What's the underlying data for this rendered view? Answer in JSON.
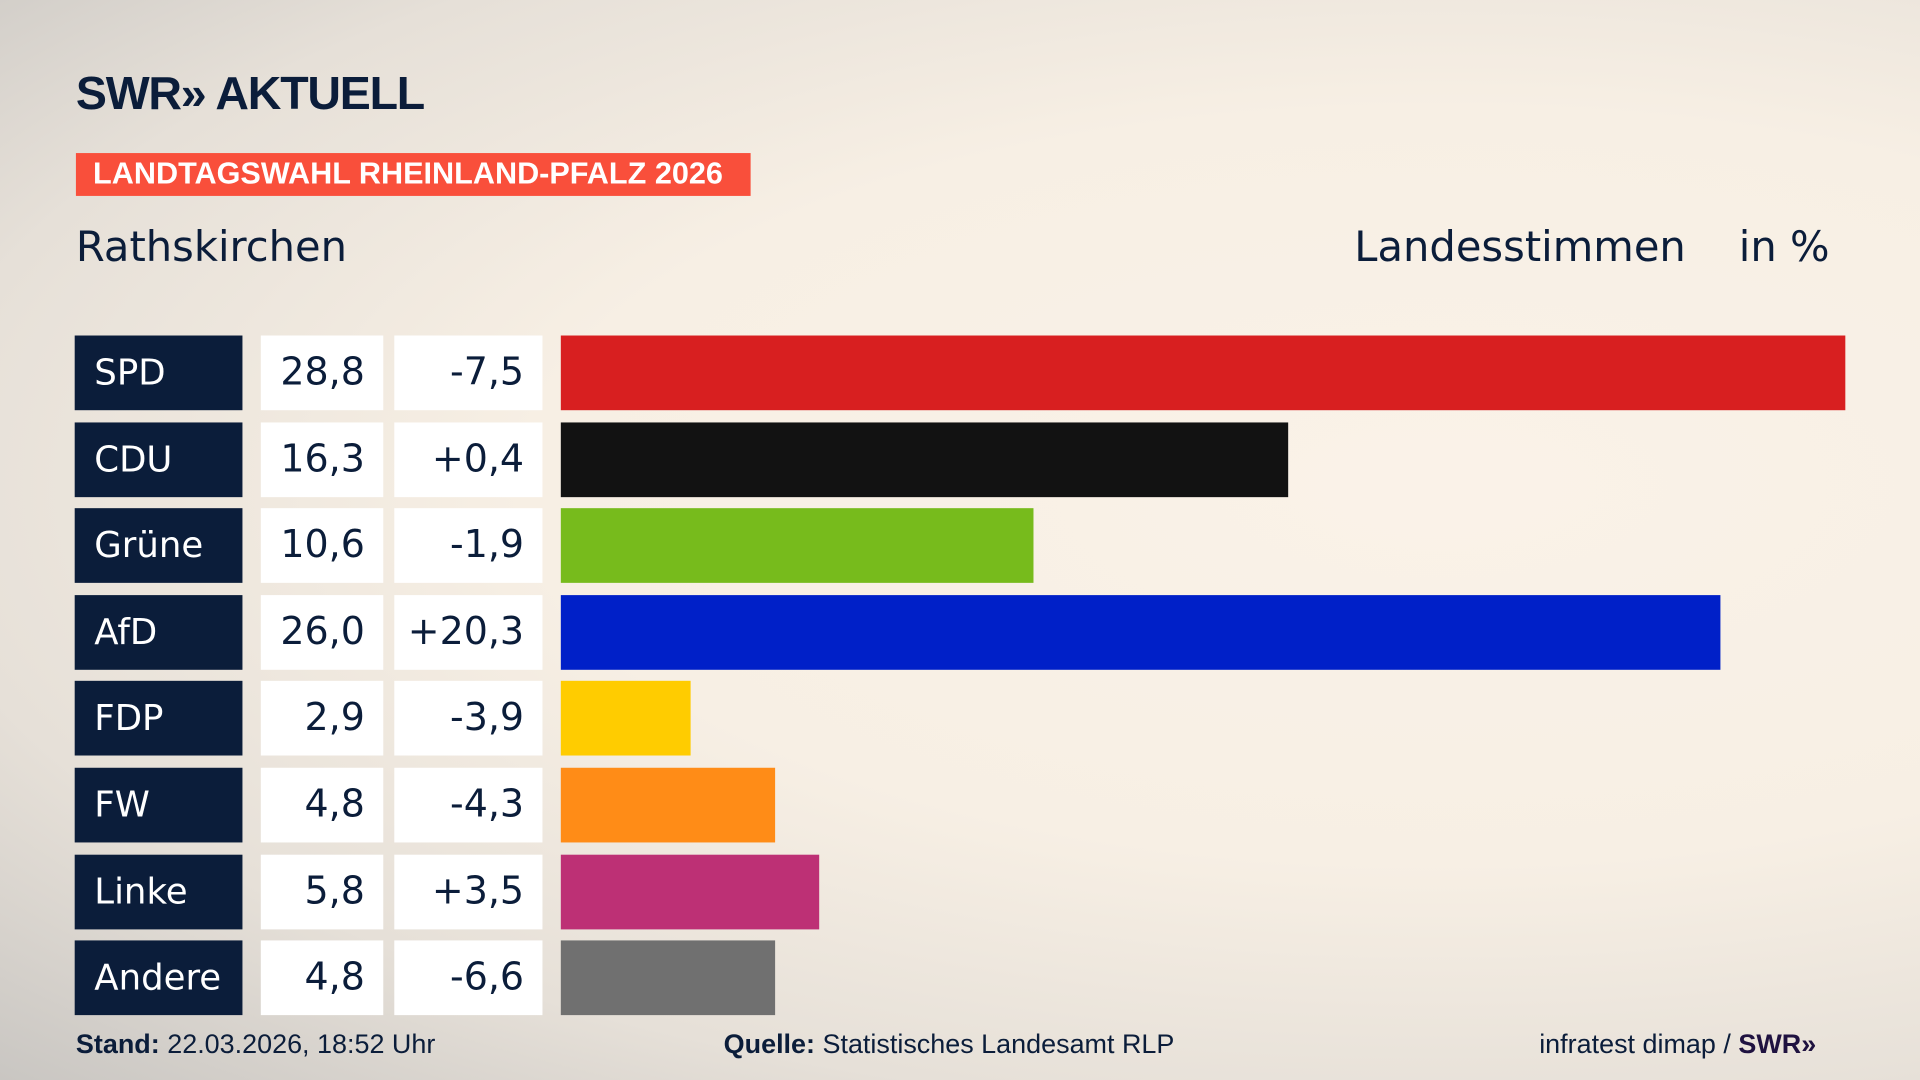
{
  "header": {
    "logo": "SWR» AKTUELL",
    "badge": "LANDTAGSWAHL RHEINLAND-PFALZ 2026",
    "location": "Rathskirchen",
    "measure": "Landesstimmen",
    "unit": "in %"
  },
  "chart_data": {
    "type": "bar",
    "orientation": "horizontal",
    "xlim": [
      0,
      28.8
    ],
    "categories": [
      "SPD",
      "CDU",
      "Grüne",
      "AfD",
      "FDP",
      "FW",
      "Linke",
      "Andere"
    ],
    "values": [
      28.8,
      16.3,
      10.6,
      26.0,
      2.9,
      4.8,
      5.8,
      4.8
    ],
    "value_labels": [
      "28,8",
      "16,3",
      "10,6",
      "26,0",
      "2,9",
      "4,8",
      "5,8",
      "4,8"
    ],
    "diff_labels": [
      "-7,5",
      "+0,4",
      "-1,9",
      "+20,3",
      "-3,9",
      "-4,3",
      "+3,5",
      "-6,6"
    ],
    "colors": [
      "#d81f20",
      "#121212",
      "#77bb1c",
      "#0020c8",
      "#ffcc00",
      "#ff8c17",
      "#bd3075",
      "#707070"
    ]
  },
  "footer": {
    "stand_label": "Stand:",
    "stand_value": " 22.03.2026, 18:52 Uhr",
    "quelle_label": "Quelle:",
    "quelle_value": " Statistisches Landesamt RLP",
    "credit": "infratest dimap / ",
    "credit_logo": "SWR»"
  }
}
